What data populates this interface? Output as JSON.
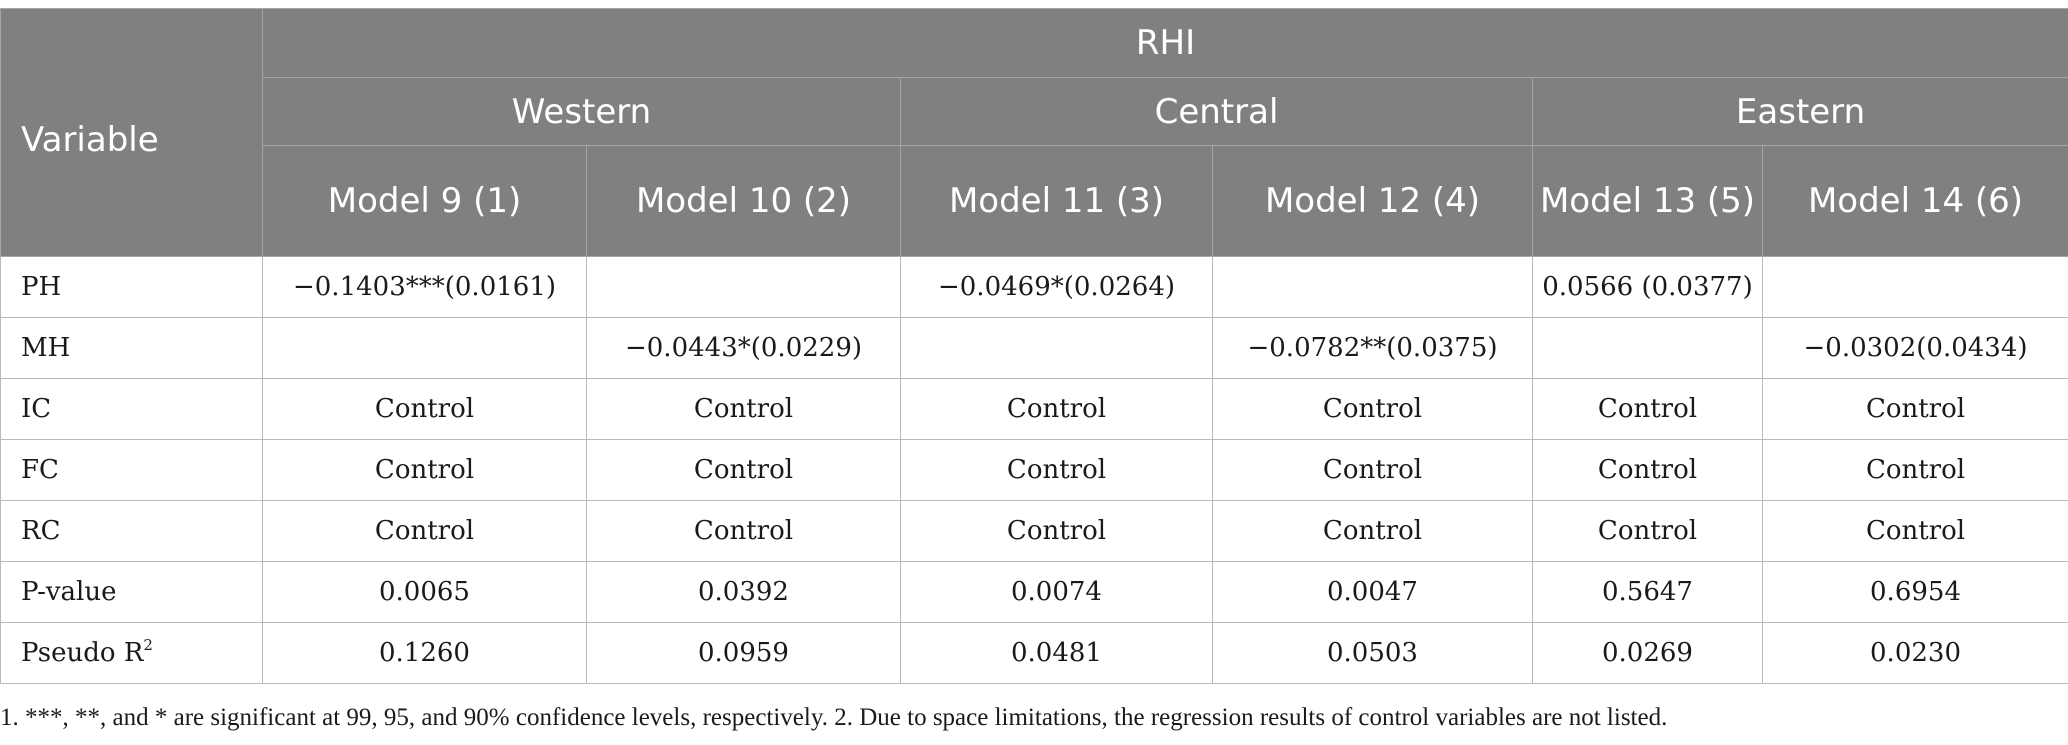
{
  "header": {
    "variable": "Variable",
    "group": "RHI",
    "regions": [
      "Western",
      "Central",
      "Eastern"
    ],
    "models": [
      "Model 9 (1)",
      "Model 10 (2)",
      "Model 11 (3)",
      "Model 12 (4)",
      "Model 13 (5)",
      "Model 14 (6)"
    ]
  },
  "rows": [
    {
      "label": "PH",
      "cells": [
        "−0.1403***(0.0161)",
        "",
        "−0.0469*(0.0264)",
        "",
        "0.0566 (0.0377)",
        ""
      ]
    },
    {
      "label": "MH",
      "cells": [
        "",
        "−0.0443*(0.0229)",
        "",
        "−0.0782**(0.0375)",
        "",
        "−0.0302(0.0434)"
      ]
    },
    {
      "label": "IC",
      "cells": [
        "Control",
        "Control",
        "Control",
        "Control",
        "Control",
        "Control"
      ]
    },
    {
      "label": "FC",
      "cells": [
        "Control",
        "Control",
        "Control",
        "Control",
        "Control",
        "Control"
      ]
    },
    {
      "label": "RC",
      "cells": [
        "Control",
        "Control",
        "Control",
        "Control",
        "Control",
        "Control"
      ]
    },
    {
      "label": "P-value",
      "cells": [
        "0.0065",
        "0.0392",
        "0.0074",
        "0.0047",
        "0.5647",
        "0.6954"
      ]
    },
    {
      "label": "Pseudo R",
      "label_sup": "2",
      "cells": [
        "0.1260",
        "0.0959",
        "0.0481",
        "0.0503",
        "0.0269",
        "0.0230"
      ]
    }
  ],
  "footnote": "1. ***, **, and * are significant at 99, 95, and 90% confidence levels, respectively. 2. Due to space limitations, the regression results of control variables are not listed."
}
